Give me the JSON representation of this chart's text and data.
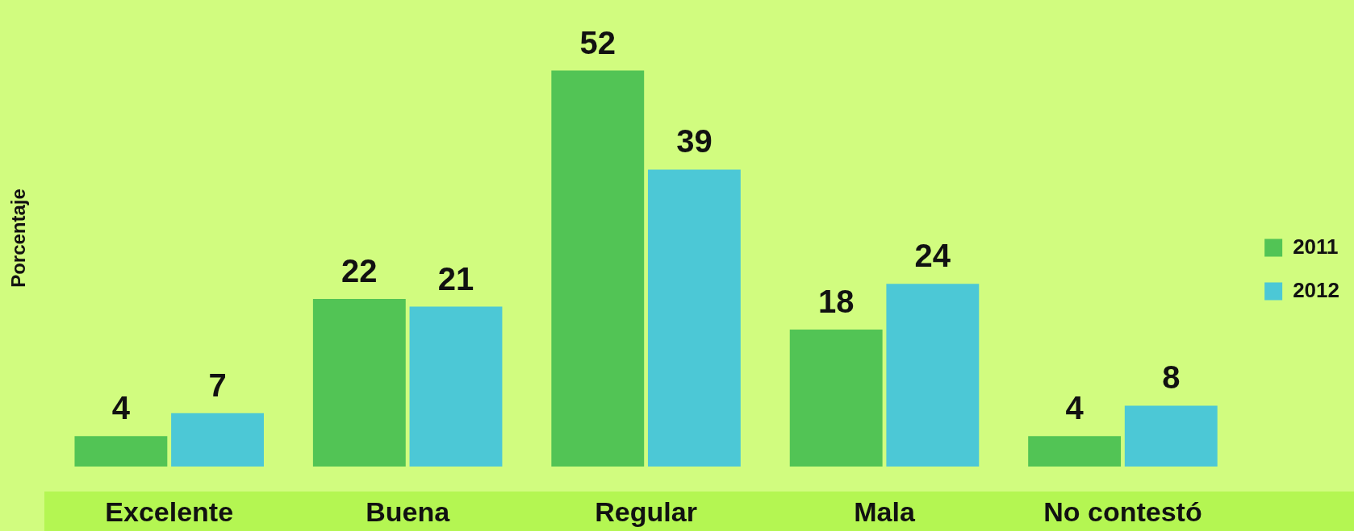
{
  "chart_data": {
    "type": "bar",
    "ylabel": "Porcentaje",
    "categories": [
      "Excelente",
      "Buena",
      "Regular",
      "Mala",
      "No contestó"
    ],
    "series": [
      {
        "name": "2011",
        "color": "#52c455",
        "values": [
          4,
          22,
          52,
          18,
          4
        ]
      },
      {
        "name": "2012",
        "color": "#4cc8d6",
        "values": [
          7,
          21,
          39,
          24,
          8
        ]
      }
    ],
    "data_labels": true,
    "legend": "right",
    "tick_labels": "x",
    "grid": false
  }
}
